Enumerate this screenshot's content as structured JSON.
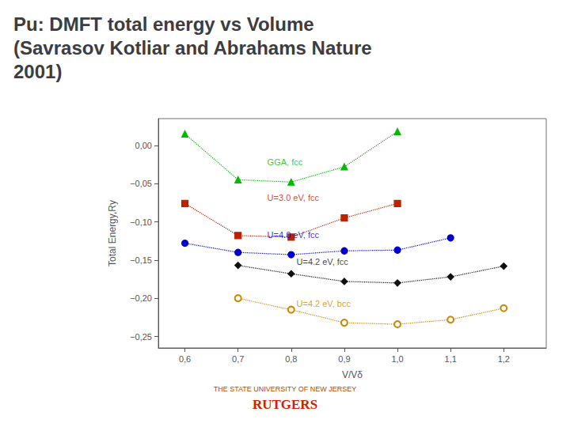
{
  "chart_data": {
    "type": "line",
    "title": "Pu: DMFT total energy vs Volume\n(Savrasov Kotliar and Abrahams Nature\n2001)",
    "xlabel": "V/Vδ",
    "ylabel": "Total Energy,Ry",
    "xlim": [
      0.55,
      1.28
    ],
    "ylim": [
      -0.265,
      0.035
    ],
    "xticks": [
      {
        "value": 0.6,
        "label": "0,6"
      },
      {
        "value": 0.7,
        "label": "0,7"
      },
      {
        "value": 0.8,
        "label": "0,8"
      },
      {
        "value": 0.9,
        "label": "0,9"
      },
      {
        "value": 1.0,
        "label": "1,0"
      },
      {
        "value": 1.1,
        "label": "1,1"
      },
      {
        "value": 1.2,
        "label": "1,2"
      }
    ],
    "yticks": [
      {
        "value": 0.0,
        "label": "0,00"
      },
      {
        "value": -0.05,
        "label": "−0,05"
      },
      {
        "value": -0.1,
        "label": "−0,10"
      },
      {
        "value": -0.15,
        "label": "−0,15"
      },
      {
        "value": -0.2,
        "label": "−0,20"
      },
      {
        "value": -0.25,
        "label": "−0,25"
      }
    ],
    "grid": false,
    "legend": false,
    "series": [
      {
        "name": "GGA, fcc",
        "color": "#00bb00",
        "marker": "triangle",
        "line_style": "dotted",
        "x": [
          0.6,
          0.7,
          0.8,
          0.9,
          1.0
        ],
        "values": [
          0.015,
          -0.045,
          -0.048,
          -0.028,
          0.018
        ]
      },
      {
        "name": "U=3.0 eV, fcc",
        "color": "#bb2200",
        "marker": "square",
        "line_style": "dotted",
        "x": [
          0.6,
          0.7,
          0.8,
          0.9,
          1.0
        ],
        "values": [
          -0.076,
          -0.118,
          -0.12,
          -0.095,
          -0.076
        ]
      },
      {
        "name": "U=4.0 eV, fcc",
        "color": "#0000cc",
        "marker": "circle",
        "line_style": "dotted",
        "x": [
          0.6,
          0.7,
          0.8,
          0.9,
          1.0,
          1.1
        ],
        "values": [
          -0.128,
          -0.14,
          -0.143,
          -0.138,
          -0.137,
          -0.121
        ]
      },
      {
        "name": "U=4.2 eV, fcc",
        "color": "#111111",
        "marker": "diamond",
        "line_style": "dotted",
        "x": [
          0.7,
          0.8,
          0.9,
          1.0,
          1.1,
          1.2
        ],
        "values": [
          -0.157,
          -0.168,
          -0.178,
          -0.18,
          -0.172,
          -0.158
        ]
      },
      {
        "name": "U=4.2 eV, bcc",
        "color": "#cc8800",
        "marker": "open circle",
        "line_style": "dotted",
        "x": [
          0.7,
          0.8,
          0.9,
          1.0,
          1.1,
          1.2
        ],
        "values": [
          -0.2,
          -0.215,
          -0.232,
          -0.234,
          -0.228,
          -0.213
        ]
      }
    ],
    "annotations": [
      {
        "text": "GGA, fcc",
        "x": 0.755,
        "y": -0.022,
        "color": "#00bb00"
      },
      {
        "text": "U=3.0 eV, fcc",
        "x": 0.755,
        "y": -0.068,
        "color": "#bb2200"
      },
      {
        "text": "U=4.0 eV, fcc",
        "x": 0.755,
        "y": -0.117,
        "color": "#0000cc"
      },
      {
        "text": "U=4.2 eV, fcc",
        "x": 0.81,
        "y": -0.152,
        "color": "#111111"
      },
      {
        "text": "U=4.2 eV, bcc",
        "x": 0.81,
        "y": -0.207,
        "color": "#cc8800"
      },
      {
        "text": "THE STATE UNIVERSITY OF NEW JERSEY",
        "color": "#bb4400"
      },
      {
        "text": "RUTGERS",
        "color": "#cc2200"
      }
    ]
  }
}
